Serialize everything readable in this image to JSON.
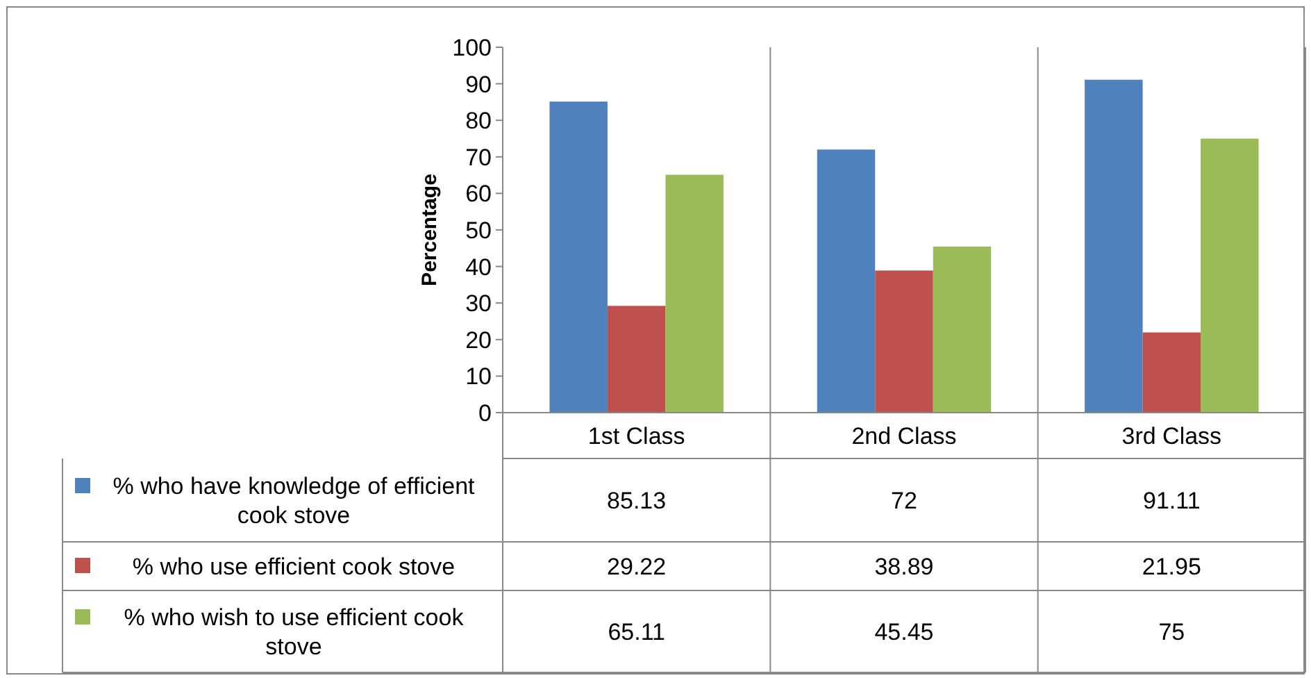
{
  "chart_data": {
    "type": "bar",
    "ylabel": "Percentage",
    "categories": [
      "1st Class",
      "2nd Class",
      "3rd Class"
    ],
    "series": [
      {
        "name": "% who have knowledge of efficient cook stove",
        "color": "#4f81bd",
        "values": [
          85.13,
          72,
          91.11
        ]
      },
      {
        "name": "% who use efficient cook stove",
        "color": "#c0504d",
        "values": [
          29.22,
          38.89,
          21.95
        ]
      },
      {
        "name": "% who wish to use efficient cook stove",
        "color": "#9bbb59",
        "values": [
          65.11,
          45.45,
          75
        ]
      }
    ],
    "ylim": [
      0,
      100
    ],
    "yticks": [
      0,
      10,
      20,
      30,
      40,
      50,
      60,
      70,
      80,
      90,
      100
    ],
    "grid": "x",
    "legend": "bottom",
    "data_labels": true
  }
}
